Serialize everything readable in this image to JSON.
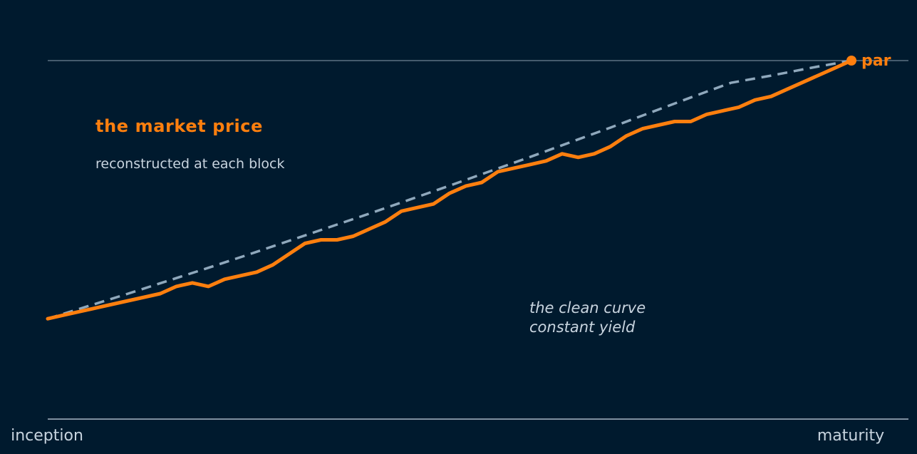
{
  "colors": {
    "background": "#001a2e",
    "market": "#ff7f0e",
    "clean": "#8fa8bc",
    "axis": "#a9b8c6",
    "gridline": "#5c7182",
    "label_text": "#c8d4df"
  },
  "chart_data": {
    "type": "line",
    "title": "",
    "xlabel": "",
    "ylabel": "",
    "x_tick_labels": [
      "inception",
      "maturity"
    ],
    "xlim": [
      0,
      1
    ],
    "ylim": [
      0,
      1
    ],
    "grid": false,
    "reference_line": {
      "y": 1,
      "label": "par"
    },
    "annotations": {
      "market_title": "the market price",
      "market_subtitle": "reconstructed at each block",
      "clean_line1": "the clean curve",
      "clean_line2": "constant yield"
    },
    "series": [
      {
        "name": "",
        "style": "dashed",
        "x": [
          0,
          0.05,
          0.1,
          0.15,
          0.2,
          0.25,
          0.3,
          0.35,
          0.4,
          0.45,
          0.5,
          0.55,
          0.6,
          0.65,
          0.7,
          0.75,
          0.8,
          0.85,
          0.9,
          0.95,
          1.0
        ],
        "y": [
          0.28,
          0.315,
          0.35,
          0.386,
          0.422,
          0.459,
          0.497,
          0.535,
          0.573,
          0.612,
          0.651,
          0.691,
          0.731,
          0.772,
          0.813,
          0.855,
          0.897,
          0.938,
          0.958,
          0.98,
          1.0
        ]
      },
      {
        "name": "",
        "style": "solid",
        "x": [
          0,
          0.02,
          0.04,
          0.06,
          0.08,
          0.1,
          0.12,
          0.14,
          0.16,
          0.18,
          0.2,
          0.22,
          0.24,
          0.26,
          0.28,
          0.3,
          0.32,
          0.34,
          0.36,
          0.38,
          0.4,
          0.42,
          0.44,
          0.46,
          0.48,
          0.5,
          0.52,
          0.54,
          0.56,
          0.58,
          0.6,
          0.62,
          0.64,
          0.66,
          0.68,
          0.7,
          0.72,
          0.74,
          0.76,
          0.78,
          0.8,
          0.82,
          0.84,
          0.86,
          0.88,
          0.9,
          0.92,
          0.94,
          0.96,
          0.98,
          1.0
        ],
        "y": [
          0.28,
          0.29,
          0.3,
          0.31,
          0.32,
          0.33,
          0.34,
          0.35,
          0.37,
          0.38,
          0.37,
          0.39,
          0.4,
          0.41,
          0.43,
          0.46,
          0.49,
          0.5,
          0.5,
          0.51,
          0.53,
          0.55,
          0.58,
          0.59,
          0.6,
          0.63,
          0.65,
          0.66,
          0.69,
          0.7,
          0.71,
          0.72,
          0.74,
          0.73,
          0.74,
          0.76,
          0.79,
          0.81,
          0.82,
          0.83,
          0.83,
          0.85,
          0.86,
          0.87,
          0.89,
          0.9,
          0.92,
          0.94,
          0.96,
          0.98,
          1.0
        ]
      }
    ]
  }
}
